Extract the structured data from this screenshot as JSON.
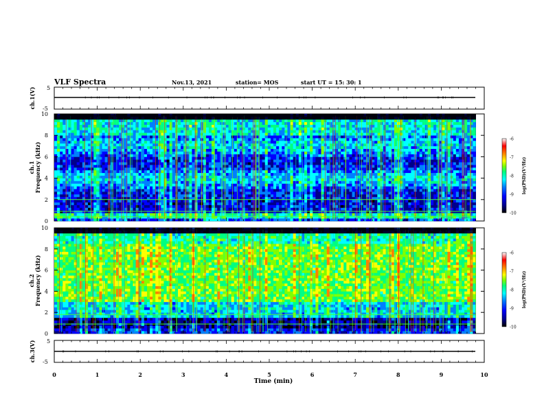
{
  "header": {
    "title": "VLF Spectra",
    "date": "Nov.13, 2021",
    "station": "station= MOS",
    "start": "start  UT =   15: 30: 1"
  },
  "chart_data": [
    {
      "type": "line",
      "name": "ch1-voltage",
      "ylabel": "ch.1(V)",
      "ylim": [
        -5,
        5
      ],
      "yticks": [
        "5",
        "-5"
      ],
      "xlim": [
        0,
        10
      ],
      "series": [
        {
          "values_description": "",
          "level": 0
        }
      ]
    },
    {
      "type": "heatmap",
      "name": "ch1-spectrogram",
      "ylabel": "ch.1\nFrequency (kHz)",
      "ylabel_lines": [
        "ch.1",
        "Frequency (kHz)"
      ],
      "ylim": [
        0,
        10
      ],
      "yticks": [
        "0",
        "2",
        "4",
        "6",
        "8",
        "10"
      ],
      "xlim": [
        0,
        10
      ],
      "data_end_min": 9.8
    },
    {
      "type": "heatmap",
      "name": "ch2-spectrogram",
      "ylabel_lines": [
        "ch.2",
        "Frequency (kHz)"
      ],
      "ylim": [
        0,
        10
      ],
      "yticks": [
        "0",
        "2",
        "4",
        "6",
        "8",
        "10"
      ],
      "xlim": [
        0,
        10
      ],
      "data_end_min": 9.8
    },
    {
      "type": "line",
      "name": "ch3-voltage",
      "ylabel": "ch.3(V)",
      "ylim": [
        -5,
        5
      ],
      "yticks": [
        "5",
        "-5"
      ],
      "xlim": [
        0,
        10
      ],
      "series": [
        {
          "level": 0
        }
      ]
    }
  ],
  "xaxis": {
    "label": "Time  (min)",
    "ticks": [
      "0",
      "1",
      "2",
      "3",
      "4",
      "5",
      "6",
      "7",
      "8",
      "9",
      "10"
    ]
  },
  "colorbar": {
    "label": "log(PSD)(V²/Hz)",
    "ticks": [
      "-6",
      "-7",
      "-8",
      "-9",
      "-10"
    ],
    "range": [
      -10,
      -6
    ]
  },
  "colors": {
    "scale": [
      "#000000",
      "#00008b",
      "#0000ff",
      "#0080ff",
      "#00ffff",
      "#00ff80",
      "#80ff00",
      "#ffff00",
      "#ff8000",
      "#ff0000",
      "#ffffff"
    ]
  }
}
